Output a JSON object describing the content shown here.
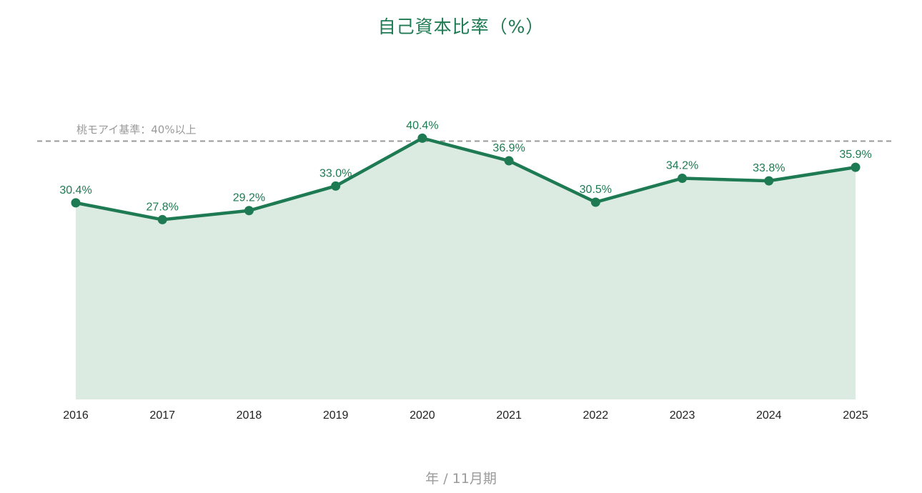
{
  "chart_data": {
    "type": "area",
    "title": "自己資本比率（%）",
    "xlabel": "年 / 11月期",
    "ylabel": "",
    "categories": [
      "2016",
      "2017",
      "2018",
      "2019",
      "2020",
      "2021",
      "2022",
      "2023",
      "2024",
      "2025"
    ],
    "series": [
      {
        "values": [
          30.4,
          27.8,
          29.2,
          33.0,
          40.4,
          36.9,
          30.5,
          34.2,
          33.8,
          35.9
        ],
        "labels": [
          "30.4%",
          "27.8%",
          "29.2%",
          "33.0%",
          "40.4%",
          "36.9%",
          "30.5%",
          "34.2%",
          "33.8%",
          "35.9%"
        ]
      }
    ],
    "reference_line": {
      "value": 40,
      "label": "桃モアイ基準：40%以上",
      "style": "dashed"
    },
    "ylim": [
      0,
      41
    ],
    "grid": false,
    "legend": "none",
    "colors": {
      "line": "#1e7a52",
      "fill": "#dcebe2",
      "reference": "#9a9a9a",
      "title": "#1e7a52"
    }
  }
}
